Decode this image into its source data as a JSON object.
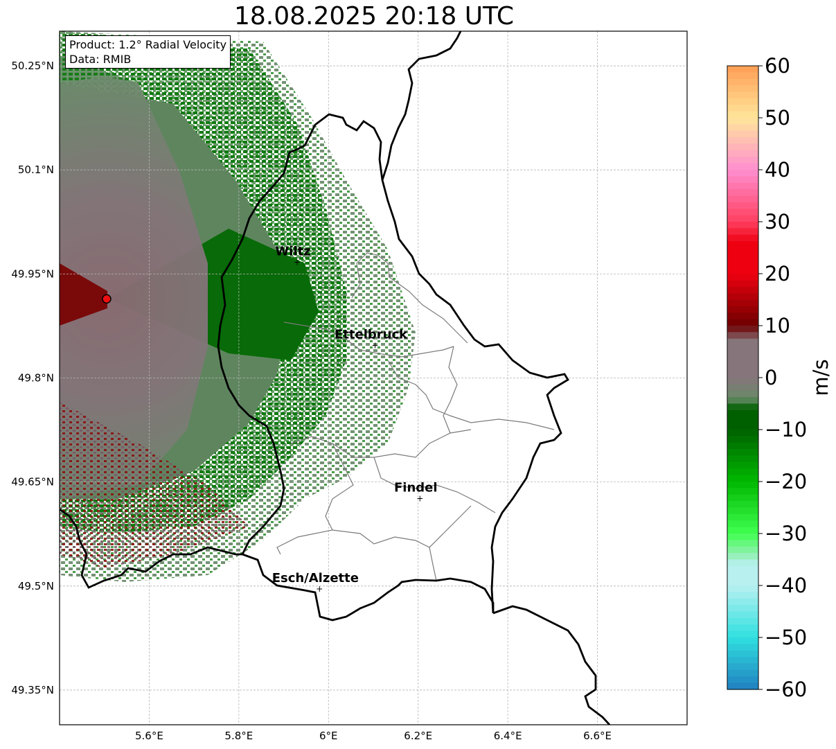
{
  "title": "18.08.2025 20:18 UTC",
  "info": {
    "product": "Product: 1.2° Radial Velocity",
    "data_source": "Data: RMIB"
  },
  "map": {
    "lon_range": [
      5.4,
      6.8
    ],
    "lat_range": [
      49.3,
      50.3
    ],
    "lon_ticks": [
      {
        "value": 5.6,
        "label": "5.6°E"
      },
      {
        "value": 5.8,
        "label": "5.8°E"
      },
      {
        "value": 6.0,
        "label": "6°E"
      },
      {
        "value": 6.2,
        "label": "6.2°E"
      },
      {
        "value": 6.4,
        "label": "6.4°E"
      },
      {
        "value": 6.6,
        "label": "6.6°E"
      }
    ],
    "lat_ticks": [
      {
        "value": 50.25,
        "label": "50.25°N"
      },
      {
        "value": 50.1,
        "label": "50.1°N"
      },
      {
        "value": 49.95,
        "label": "49.95°N"
      },
      {
        "value": 49.8,
        "label": "49.8°N"
      },
      {
        "value": 49.65,
        "label": "49.65°N"
      },
      {
        "value": 49.5,
        "label": "49.5°N"
      },
      {
        "value": 49.35,
        "label": "49.35°N"
      }
    ],
    "radar_site": {
      "lon": 5.505,
      "lat": 49.914
    },
    "cities": [
      {
        "name": "Wiltz",
        "lon": 5.93,
        "lat": 49.967
      },
      {
        "name": "Ettelbruck",
        "lon": 6.104,
        "lat": 49.847
      },
      {
        "name": "Findel",
        "lon": 6.204,
        "lat": 49.626
      },
      {
        "name": "Esch/Alzette",
        "lon": 5.98,
        "lat": 49.496
      }
    ]
  },
  "colorbar": {
    "label": "m/s",
    "min": -60,
    "max": 60,
    "ticks": [
      "60",
      "50",
      "40",
      "30",
      "20",
      "10",
      "0",
      "−10",
      "−20",
      "−30",
      "−40",
      "−50",
      "−60"
    ],
    "colors": {
      "hi": "#ff9e55",
      "c50": "#ffe59a",
      "c40": "#ff8fd0",
      "c30": "#ff4060",
      "c20": "#ee0010",
      "c10": "#6e0000",
      "c0": "#86757b",
      "cm0": "#688a68",
      "cm10": "#006000",
      "cm20": "#00b800",
      "cm30": "#40ff50",
      "cm35": "#90f0b0",
      "cm40": "#b8f0f0",
      "cm50": "#30e0e0",
      "lo": "#2080c0"
    }
  }
}
